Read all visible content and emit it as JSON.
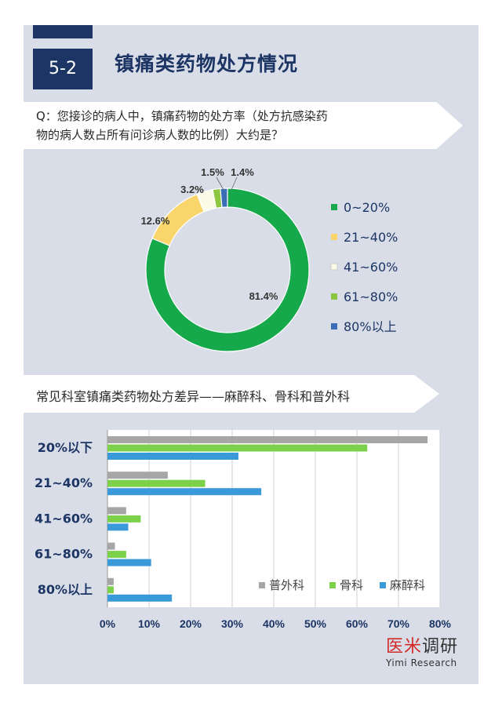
{
  "header": {
    "section_number": "5-2",
    "title": "镇痛类药物处方情况"
  },
  "question": {
    "line1": "Q：您接诊的病人中，镇痛药物的处方率（处方抗感染药",
    "line2": "物的病人数占所有问诊病人数的比例）大约是？"
  },
  "section2": {
    "title": "常见科室镇痛类药物处方差异——麻醉科、骨科和普外科"
  },
  "logo": {
    "cn_red": "医米",
    "cn_dark": "调研",
    "en": "Yimi Research"
  },
  "colors": {
    "navy": "#1c3564",
    "panel": "#d9dde7",
    "green": "#16a94b",
    "yellow": "#f9d56b",
    "cream": "#fbfbe8",
    "lightgreen": "#8dc63f",
    "blue": "#3a6fb5",
    "gray": "#a6a6a6",
    "bar_green": "#7dd04a",
    "bar_blue": "#3a99d8"
  },
  "chart_data": [
    {
      "type": "pie",
      "subtype": "donut",
      "categories": [
        "0~20%",
        "21~40%",
        "41~60%",
        "61~80%",
        "80%以上"
      ],
      "values": [
        81.4,
        12.6,
        3.2,
        1.5,
        1.4
      ],
      "labels": [
        "81.4%",
        "12.6%",
        "3.2%",
        "1.5%",
        "1.4%"
      ],
      "colors": [
        "#16a94b",
        "#f9d56b",
        "#fbfbe8",
        "#8dc63f",
        "#3a6fb5"
      ],
      "legend": "right"
    },
    {
      "type": "bar",
      "orientation": "horizontal",
      "categories": [
        "20%以下",
        "21~40%",
        "41~60%",
        "61~80%",
        "80%以上"
      ],
      "series": [
        {
          "name": "普外科",
          "color": "#a6a6a6",
          "values": [
            77,
            14.5,
            4.5,
            1.8,
            1.5
          ]
        },
        {
          "name": "骨科",
          "color": "#7dd04a",
          "values": [
            62.5,
            23.5,
            8,
            4.5,
            1.5
          ]
        },
        {
          "name": "麻醉科",
          "color": "#3a99d8",
          "values": [
            31.5,
            37,
            5,
            10.5,
            15.5
          ]
        }
      ],
      "xlim": [
        0,
        80
      ],
      "xticks": [
        "0%",
        "10%",
        "20%",
        "30%",
        "40%",
        "50%",
        "60%",
        "70%",
        "80%"
      ],
      "grid": true,
      "legend": "bottom-right"
    }
  ]
}
